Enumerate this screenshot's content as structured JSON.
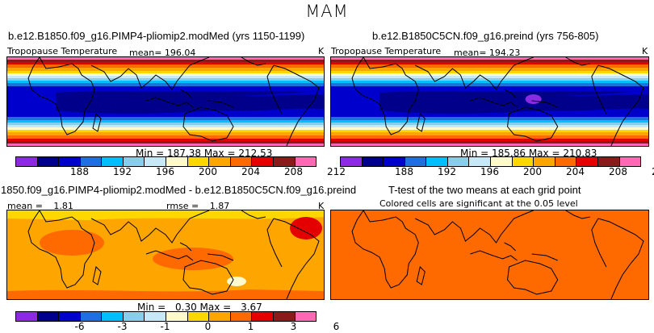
{
  "super_title": "MAM",
  "panels": [
    {
      "title": "b.e12.B1850.f09_g16.PIMP4-pliomip2.modMed (yrs 1150-1199)",
      "variable": "Tropopause Temperature",
      "mean_label": "mean=",
      "mean_value": "196.04",
      "units": "K",
      "min_label": "Min =",
      "min_value": "187.38",
      "max_label": "Max =",
      "max_value": "212.53"
    },
    {
      "title": "b.e12.B1850C5CN.f09_g16.preind (yrs 756-805)",
      "variable": "Tropopause Temperature",
      "mean_label": "mean=",
      "mean_value": "194.23",
      "units": "K",
      "min_label": "Min =",
      "min_value": "185.86",
      "max_label": "Max =",
      "max_value": "210.83"
    },
    {
      "title": "1850.f09_g16.PIMP4-pliomip2.modMed - b.e12.B1850C5CN.f09_g16.preind",
      "mean_label": "mean =",
      "mean_value": "1.81",
      "rmse_label": "rmse =",
      "rmse_value": "1.87",
      "units": "K",
      "min_label": "Min =",
      "min_value": "0.30",
      "max_label": "Max =",
      "max_value": "3.67"
    },
    {
      "title": "T-test of the two means at each grid point",
      "subtitle": "Colored cells are significant at the 0.05 level"
    }
  ],
  "colorbars": {
    "abs_colors": [
      "#8a2be2",
      "#00008b",
      "#0000cd",
      "#1e6fe0",
      "#00bfff",
      "#87ceeb",
      "#c6e8f7",
      "#fffacd",
      "#ffd700",
      "#ffa500",
      "#ff6a00",
      "#e50000",
      "#8b1a1a",
      "#ff69b4"
    ],
    "abs_ticks": [
      "188",
      "192",
      "196",
      "200",
      "204",
      "208",
      "212"
    ],
    "diff_colors": [
      "#8a2be2",
      "#00008b",
      "#0000cd",
      "#1e6fe0",
      "#00bfff",
      "#87ceeb",
      "#c6e8f7",
      "#fffacd",
      "#ffd700",
      "#ffa500",
      "#ff6a00",
      "#e50000",
      "#8b1a1a",
      "#ff69b4"
    ],
    "diff_ticks": [
      "-6",
      "-3",
      "-1",
      "0",
      "1",
      "3",
      "6"
    ]
  },
  "chart_data": [
    {
      "type": "heatmap",
      "title": "b.e12.B1850.f09_g16.PIMP4-pliomip2.modMed (yrs 1150-1199)",
      "field": "Tropopause Temperature",
      "units": "K",
      "mean": 196.04,
      "min": 187.38,
      "max": 212.53,
      "levels": [
        188,
        190,
        192,
        194,
        196,
        198,
        200,
        202,
        204,
        206,
        208,
        210,
        212
      ]
    },
    {
      "type": "heatmap",
      "title": "b.e12.B1850C5CN.f09_g16.preind (yrs 756-805)",
      "field": "Tropopause Temperature",
      "units": "K",
      "mean": 194.23,
      "min": 185.86,
      "max": 210.83,
      "levels": [
        188,
        190,
        192,
        194,
        196,
        198,
        200,
        202,
        204,
        206,
        208,
        210,
        212
      ]
    },
    {
      "type": "heatmap",
      "title": "1850.f09_g16.PIMP4-pliomip2.modMed - b.e12.B1850C5CN.f09_g16.preind",
      "units": "K",
      "mean": 1.81,
      "rmse": 1.87,
      "min": 0.3,
      "max": 3.67,
      "levels": [
        -6,
        -3,
        -1,
        0,
        1,
        3,
        6
      ]
    },
    {
      "type": "heatmap",
      "title": "T-test of the two means at each grid point",
      "note": "Colored cells are significant at the 0.05 level"
    }
  ]
}
